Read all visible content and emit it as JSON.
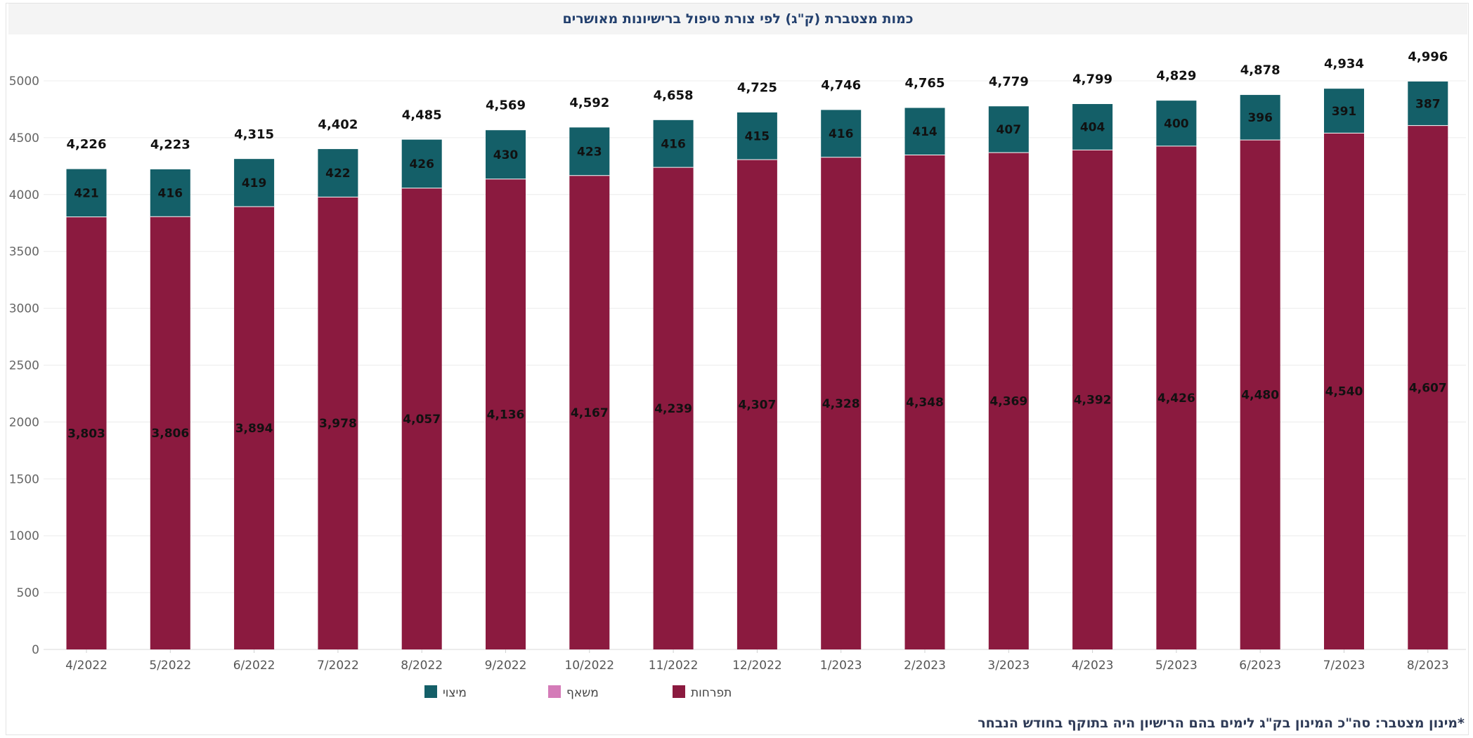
{
  "title": "כמות מצטברת (ק\"ג) לפי צורת טיפול ברישיונות מאושרים",
  "footnote": "*מינון מצטבר: סה\"כ המינון בק\"ג לימים בהם הרישיון היה בתוקף בחודש הנבחר",
  "colors": {
    "inflorescence": "#8b1a3f",
    "oil": "#d47bb8",
    "extract": "#145f68"
  },
  "chart_data": {
    "type": "bar",
    "stacked": true,
    "title": "כמות מצטברת (ק\"ג) לפי צורת טיפול ברישיונות מאושרים",
    "ylim": [
      0,
      5000
    ],
    "yticks": [
      0,
      500,
      1000,
      1500,
      2000,
      2500,
      3000,
      3500,
      4000,
      4500,
      5000
    ],
    "grid": true,
    "legend_position": "bottom",
    "categories": [
      "4/2022",
      "5/2022",
      "6/2022",
      "7/2022",
      "8/2022",
      "9/2022",
      "10/2022",
      "11/2022",
      "12/2022",
      "1/2023",
      "2/2023",
      "3/2023",
      "4/2023",
      "5/2023",
      "6/2023",
      "7/2023",
      "8/2023"
    ],
    "series": [
      {
        "name": "תפרחות",
        "color": "#8b1a3f",
        "values": [
          3803,
          3806,
          3894,
          3978,
          4057,
          4136,
          4167,
          4239,
          4307,
          4328,
          4348,
          4369,
          4392,
          4426,
          4480,
          4540,
          4607
        ]
      },
      {
        "name": "משאף",
        "color": "#d47bb8",
        "values": [
          0,
          0,
          0,
          0,
          0,
          0,
          0,
          0,
          0,
          0,
          0,
          0,
          0,
          0,
          0,
          0,
          0
        ]
      },
      {
        "name": "מיצוי",
        "color": "#145f68",
        "values": [
          421,
          416,
          419,
          422,
          426,
          430,
          423,
          416,
          415,
          416,
          414,
          407,
          404,
          400,
          396,
          391,
          387
        ]
      }
    ],
    "segment_labels": {
      "תפרחות": [
        "3,803",
        "3,806",
        "3,894",
        "3,978",
        "4,057",
        "4,136",
        "4,167",
        "4,239",
        "4,307",
        "4,328",
        "4,348",
        "4,369",
        "4,392",
        "4,426",
        "4,480",
        "4,540",
        "4,607"
      ],
      "מיצוי": [
        "421",
        "416",
        "419",
        "422",
        "426",
        "430",
        "423",
        "416",
        "415",
        "416",
        "414",
        "407",
        "404",
        "400",
        "396",
        "391",
        "387"
      ]
    },
    "totals": [
      4226,
      4223,
      4315,
      4402,
      4485,
      4569,
      4592,
      4658,
      4725,
      4746,
      4765,
      4779,
      4799,
      4829,
      4878,
      4934,
      4996
    ],
    "total_labels": [
      "4,226",
      "4,223",
      "4,315",
      "4,402",
      "4,485",
      "4,569",
      "4,592",
      "4,658",
      "4,725",
      "4,746",
      "4,765",
      "4,779",
      "4,799",
      "4,829",
      "4,878",
      "4,934",
      "4,996"
    ],
    "legend": [
      {
        "name": "מיצוי",
        "color": "#145f68"
      },
      {
        "name": "משאף",
        "color": "#d47bb8"
      },
      {
        "name": "תפרחות",
        "color": "#8b1a3f"
      }
    ]
  }
}
